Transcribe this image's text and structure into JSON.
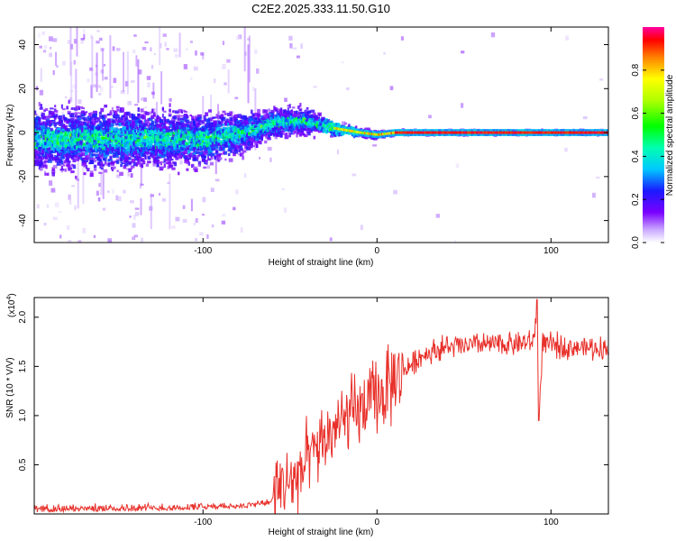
{
  "title": "C2E2.2025.333.11.50.G10",
  "colors": {
    "snr_line": "#e8302a",
    "axis": "#000000",
    "background": "#ffffff"
  },
  "chart_data": [
    {
      "type": "heatmap",
      "name": "spectrogram",
      "xlabel": "Height of straight line (km)",
      "ylabel": "Frequency (Hz)",
      "xlim": [
        -197,
        133
      ],
      "ylim": [
        -50,
        48
      ],
      "x_ticks": [
        {
          "value": -100,
          "label": "-100"
        },
        {
          "value": 0,
          "label": "0"
        },
        {
          "value": 100,
          "label": "100"
        }
      ],
      "y_ticks": [
        {
          "value": 40,
          "label": "40"
        },
        {
          "value": 20,
          "label": "20"
        },
        {
          "value": 0,
          "label": "0"
        },
        {
          "value": -20,
          "label": "-20"
        },
        {
          "value": -40,
          "label": "-40"
        }
      ],
      "signal_track": {
        "description_values_x_km": [
          -197,
          -150,
          -100,
          -75,
          -55,
          -40,
          -25,
          -10,
          0,
          10,
          133
        ],
        "center_freq_hz": [
          -3,
          -3,
          -3,
          0,
          5,
          5,
          2,
          0,
          -1,
          0,
          0
        ],
        "spread_hz": [
          14,
          14,
          12,
          9,
          7,
          6,
          3,
          2,
          2,
          1,
          1
        ]
      },
      "colorbar": {
        "label": "Normalized spectral amplitude",
        "range": [
          0,
          1
        ],
        "ticks": [
          {
            "value": 0.0,
            "label": "0.0"
          },
          {
            "value": 0.2,
            "label": "0.2"
          },
          {
            "value": 0.4,
            "label": "0.4"
          },
          {
            "value": 0.6,
            "label": "0.6"
          },
          {
            "value": 0.8,
            "label": "0.8"
          }
        ]
      }
    },
    {
      "type": "line",
      "name": "snr",
      "xlabel": "Height of straight line (km)",
      "ylabel": "SNR (10 * V/V)",
      "y_multiplier_label": "(x10",
      "y_multiplier_exp": "4",
      "y_multiplier_close": ")",
      "xlim": [
        -197,
        133
      ],
      "ylim": [
        0,
        22000
      ],
      "x_ticks": [
        {
          "value": -100,
          "label": "-100"
        },
        {
          "value": 0,
          "label": "0"
        },
        {
          "value": 100,
          "label": "100"
        }
      ],
      "y_ticks": [
        {
          "value": 5000,
          "label": "0.5"
        },
        {
          "value": 10000,
          "label": "1.0"
        },
        {
          "value": 15000,
          "label": "1.5"
        },
        {
          "value": 20000,
          "label": "2.0"
        }
      ],
      "series": [
        {
          "name": "SNR",
          "x": [
            -197,
            -170,
            -140,
            -110,
            -90,
            -70,
            -62,
            -55,
            -45,
            -35,
            -25,
            -15,
            -5,
            5,
            15,
            25,
            35,
            45,
            60,
            75,
            90,
            92,
            93,
            95,
            110,
            133
          ],
          "y": [
            300,
            400,
            500,
            600,
            800,
            1100,
            1500,
            2800,
            4000,
            6500,
            8500,
            10000,
            11000,
            12500,
            14500,
            16000,
            16800,
            17000,
            17200,
            17300,
            17400,
            21500,
            9500,
            17200,
            17000,
            16800
          ]
        }
      ]
    }
  ]
}
